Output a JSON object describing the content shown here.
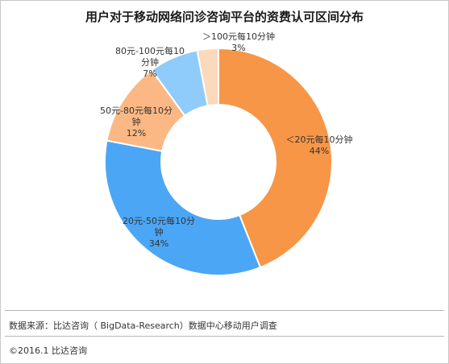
{
  "chart_data": {
    "type": "pie",
    "donut": true,
    "title": "用户对于移动网络问诊咨询平台的资费认可区间分布",
    "slices": [
      {
        "label_lines": [
          "＜20元每10分钟"
        ],
        "percent_text": "44%",
        "value": 44,
        "color": "#f79646"
      },
      {
        "label_lines": [
          "20元-50元每10分",
          "钟"
        ],
        "percent_text": "34%",
        "value": 34,
        "color": "#4ba6f5"
      },
      {
        "label_lines": [
          "50元-80元每10分",
          "钟"
        ],
        "percent_text": "12%",
        "value": 12,
        "color": "#fbb884"
      },
      {
        "label_lines": [
          "80元-100元每10",
          "分钟"
        ],
        "percent_text": "7%",
        "value": 7,
        "color": "#8fcbfb"
      },
      {
        "label_lines": [
          "＞100元每10分钟"
        ],
        "percent_text": "3%",
        "value": 3,
        "color": "#fcd9bd"
      }
    ]
  },
  "footer": {
    "source": "数据来源：比达咨询（ BigData-Research）数据中心移动用户调查",
    "copyright": "©2016.1 比达咨询"
  }
}
